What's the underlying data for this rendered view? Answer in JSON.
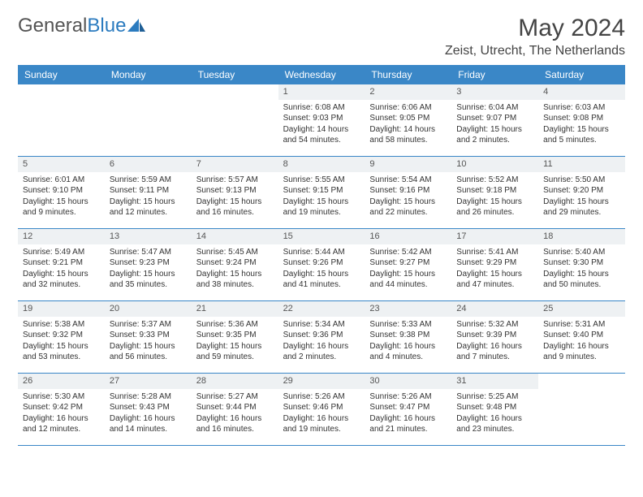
{
  "logo": {
    "text1": "General",
    "text2": "Blue"
  },
  "title": "May 2024",
  "location": "Zeist, Utrecht, The Netherlands",
  "colors": {
    "header_bg": "#3a87c7",
    "header_text": "#ffffff",
    "daynum_bg": "#eef1f3",
    "body_text": "#333333",
    "logo_gray": "#555555",
    "logo_blue": "#2b7bbf"
  },
  "dayHeaders": [
    "Sunday",
    "Monday",
    "Tuesday",
    "Wednesday",
    "Thursday",
    "Friday",
    "Saturday"
  ],
  "weeks": [
    [
      {
        "empty": true
      },
      {
        "empty": true
      },
      {
        "empty": true
      },
      {
        "n": "1",
        "sunrise": "Sunrise: 6:08 AM",
        "sunset": "Sunset: 9:03 PM",
        "daylight": "Daylight: 14 hours and 54 minutes."
      },
      {
        "n": "2",
        "sunrise": "Sunrise: 6:06 AM",
        "sunset": "Sunset: 9:05 PM",
        "daylight": "Daylight: 14 hours and 58 minutes."
      },
      {
        "n": "3",
        "sunrise": "Sunrise: 6:04 AM",
        "sunset": "Sunset: 9:07 PM",
        "daylight": "Daylight: 15 hours and 2 minutes."
      },
      {
        "n": "4",
        "sunrise": "Sunrise: 6:03 AM",
        "sunset": "Sunset: 9:08 PM",
        "daylight": "Daylight: 15 hours and 5 minutes."
      }
    ],
    [
      {
        "n": "5",
        "sunrise": "Sunrise: 6:01 AM",
        "sunset": "Sunset: 9:10 PM",
        "daylight": "Daylight: 15 hours and 9 minutes."
      },
      {
        "n": "6",
        "sunrise": "Sunrise: 5:59 AM",
        "sunset": "Sunset: 9:11 PM",
        "daylight": "Daylight: 15 hours and 12 minutes."
      },
      {
        "n": "7",
        "sunrise": "Sunrise: 5:57 AM",
        "sunset": "Sunset: 9:13 PM",
        "daylight": "Daylight: 15 hours and 16 minutes."
      },
      {
        "n": "8",
        "sunrise": "Sunrise: 5:55 AM",
        "sunset": "Sunset: 9:15 PM",
        "daylight": "Daylight: 15 hours and 19 minutes."
      },
      {
        "n": "9",
        "sunrise": "Sunrise: 5:54 AM",
        "sunset": "Sunset: 9:16 PM",
        "daylight": "Daylight: 15 hours and 22 minutes."
      },
      {
        "n": "10",
        "sunrise": "Sunrise: 5:52 AM",
        "sunset": "Sunset: 9:18 PM",
        "daylight": "Daylight: 15 hours and 26 minutes."
      },
      {
        "n": "11",
        "sunrise": "Sunrise: 5:50 AM",
        "sunset": "Sunset: 9:20 PM",
        "daylight": "Daylight: 15 hours and 29 minutes."
      }
    ],
    [
      {
        "n": "12",
        "sunrise": "Sunrise: 5:49 AM",
        "sunset": "Sunset: 9:21 PM",
        "daylight": "Daylight: 15 hours and 32 minutes."
      },
      {
        "n": "13",
        "sunrise": "Sunrise: 5:47 AM",
        "sunset": "Sunset: 9:23 PM",
        "daylight": "Daylight: 15 hours and 35 minutes."
      },
      {
        "n": "14",
        "sunrise": "Sunrise: 5:45 AM",
        "sunset": "Sunset: 9:24 PM",
        "daylight": "Daylight: 15 hours and 38 minutes."
      },
      {
        "n": "15",
        "sunrise": "Sunrise: 5:44 AM",
        "sunset": "Sunset: 9:26 PM",
        "daylight": "Daylight: 15 hours and 41 minutes."
      },
      {
        "n": "16",
        "sunrise": "Sunrise: 5:42 AM",
        "sunset": "Sunset: 9:27 PM",
        "daylight": "Daylight: 15 hours and 44 minutes."
      },
      {
        "n": "17",
        "sunrise": "Sunrise: 5:41 AM",
        "sunset": "Sunset: 9:29 PM",
        "daylight": "Daylight: 15 hours and 47 minutes."
      },
      {
        "n": "18",
        "sunrise": "Sunrise: 5:40 AM",
        "sunset": "Sunset: 9:30 PM",
        "daylight": "Daylight: 15 hours and 50 minutes."
      }
    ],
    [
      {
        "n": "19",
        "sunrise": "Sunrise: 5:38 AM",
        "sunset": "Sunset: 9:32 PM",
        "daylight": "Daylight: 15 hours and 53 minutes."
      },
      {
        "n": "20",
        "sunrise": "Sunrise: 5:37 AM",
        "sunset": "Sunset: 9:33 PM",
        "daylight": "Daylight: 15 hours and 56 minutes."
      },
      {
        "n": "21",
        "sunrise": "Sunrise: 5:36 AM",
        "sunset": "Sunset: 9:35 PM",
        "daylight": "Daylight: 15 hours and 59 minutes."
      },
      {
        "n": "22",
        "sunrise": "Sunrise: 5:34 AM",
        "sunset": "Sunset: 9:36 PM",
        "daylight": "Daylight: 16 hours and 2 minutes."
      },
      {
        "n": "23",
        "sunrise": "Sunrise: 5:33 AM",
        "sunset": "Sunset: 9:38 PM",
        "daylight": "Daylight: 16 hours and 4 minutes."
      },
      {
        "n": "24",
        "sunrise": "Sunrise: 5:32 AM",
        "sunset": "Sunset: 9:39 PM",
        "daylight": "Daylight: 16 hours and 7 minutes."
      },
      {
        "n": "25",
        "sunrise": "Sunrise: 5:31 AM",
        "sunset": "Sunset: 9:40 PM",
        "daylight": "Daylight: 16 hours and 9 minutes."
      }
    ],
    [
      {
        "n": "26",
        "sunrise": "Sunrise: 5:30 AM",
        "sunset": "Sunset: 9:42 PM",
        "daylight": "Daylight: 16 hours and 12 minutes."
      },
      {
        "n": "27",
        "sunrise": "Sunrise: 5:28 AM",
        "sunset": "Sunset: 9:43 PM",
        "daylight": "Daylight: 16 hours and 14 minutes."
      },
      {
        "n": "28",
        "sunrise": "Sunrise: 5:27 AM",
        "sunset": "Sunset: 9:44 PM",
        "daylight": "Daylight: 16 hours and 16 minutes."
      },
      {
        "n": "29",
        "sunrise": "Sunrise: 5:26 AM",
        "sunset": "Sunset: 9:46 PM",
        "daylight": "Daylight: 16 hours and 19 minutes."
      },
      {
        "n": "30",
        "sunrise": "Sunrise: 5:26 AM",
        "sunset": "Sunset: 9:47 PM",
        "daylight": "Daylight: 16 hours and 21 minutes."
      },
      {
        "n": "31",
        "sunrise": "Sunrise: 5:25 AM",
        "sunset": "Sunset: 9:48 PM",
        "daylight": "Daylight: 16 hours and 23 minutes."
      },
      {
        "empty": true
      }
    ]
  ]
}
